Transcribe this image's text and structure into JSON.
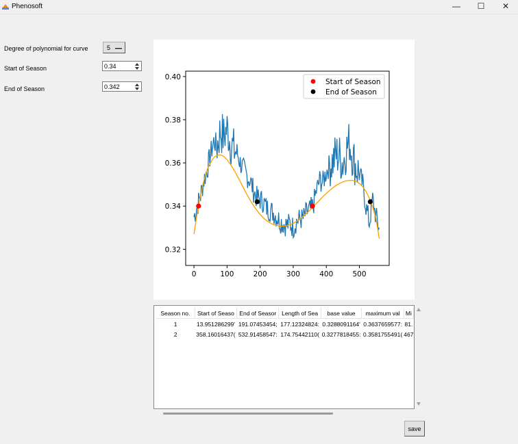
{
  "window": {
    "title": "Phenosoft",
    "minimize_glyph": "—",
    "maximize_glyph": "☐",
    "close_glyph": "✕",
    "icon": "app-icon"
  },
  "controls": {
    "degree_label": "Degree of polynomial for curve",
    "degree_value": "5",
    "start_label": "Start of Season",
    "start_value": "0.34",
    "end_label": "End of Season",
    "end_value": "0.342"
  },
  "chart_data": {
    "type": "line",
    "xlim": [
      -25,
      590
    ],
    "ylim": [
      0.3125,
      0.4025
    ],
    "x_ticks": [
      0,
      100,
      200,
      300,
      400,
      500
    ],
    "y_ticks": [
      0.32,
      0.34,
      0.36,
      0.38,
      0.4
    ],
    "x_tick_labels": [
      "0",
      "100",
      "200",
      "300",
      "400",
      "500"
    ],
    "y_tick_labels": [
      "0.32",
      "0.34",
      "0.36",
      "0.38",
      "0.40"
    ],
    "grid": false,
    "legend": {
      "position": "top-right",
      "entries": [
        {
          "label": "Start of Season",
          "color": "#ff0000"
        },
        {
          "label": "End of Season",
          "color": "#000000"
        }
      ]
    },
    "series": [
      {
        "kind": "raw",
        "color": "#1f77b4",
        "x": [
          0,
          10,
          20,
          30,
          40,
          50,
          60,
          70,
          80,
          90,
          100,
          110,
          120,
          130,
          140,
          150,
          160,
          170,
          180,
          190,
          200,
          210,
          220,
          230,
          240,
          250,
          260,
          270,
          280,
          290,
          300,
          310,
          320,
          330,
          340,
          350,
          360,
          370,
          380,
          390,
          400,
          410,
          420,
          430,
          440,
          450,
          460,
          470,
          480,
          490,
          500,
          510,
          520,
          530,
          540,
          550,
          560
        ],
        "y": [
          0.335,
          0.34,
          0.345,
          0.352,
          0.357,
          0.364,
          0.37,
          0.368,
          0.375,
          0.372,
          0.376,
          0.37,
          0.366,
          0.365,
          0.36,
          0.357,
          0.354,
          0.352,
          0.347,
          0.344,
          0.343,
          0.342,
          0.339,
          0.338,
          0.337,
          0.335,
          0.333,
          0.332,
          0.331,
          0.332,
          0.33,
          0.333,
          0.334,
          0.334,
          0.337,
          0.338,
          0.34,
          0.347,
          0.352,
          0.351,
          0.356,
          0.359,
          0.361,
          0.364,
          0.363,
          0.36,
          0.366,
          0.37,
          0.363,
          0.358,
          0.355,
          0.35,
          0.34,
          0.332,
          0.343,
          0.335,
          0.33
        ]
      },
      {
        "kind": "fit",
        "color": "#ffa500",
        "x": [
          0,
          10,
          20,
          30,
          40,
          50,
          60,
          70,
          80,
          90,
          100,
          110,
          120,
          130,
          140,
          150,
          160,
          170,
          180,
          190,
          200,
          210,
          220,
          230,
          240,
          250,
          260,
          270,
          280,
          290,
          300,
          310,
          320,
          330,
          340,
          350,
          360,
          370,
          380,
          390,
          400,
          410,
          420,
          430,
          440,
          450,
          460,
          470,
          480,
          490,
          500,
          510,
          520,
          530,
          540,
          550,
          560
        ],
        "y": [
          0.327,
          0.337,
          0.345,
          0.352,
          0.357,
          0.36,
          0.3625,
          0.3636,
          0.3637,
          0.363,
          0.3615,
          0.3594,
          0.357,
          0.3542,
          0.3513,
          0.3483,
          0.3454,
          0.3427,
          0.3402,
          0.338,
          0.3361,
          0.3345,
          0.3332,
          0.3322,
          0.3314,
          0.331,
          0.3307,
          0.3307,
          0.3309,
          0.3314,
          0.332,
          0.3329,
          0.334,
          0.3352,
          0.3366,
          0.338,
          0.3396,
          0.3412,
          0.3428,
          0.3444,
          0.3459,
          0.3472,
          0.3485,
          0.3496,
          0.3505,
          0.3512,
          0.3517,
          0.3519,
          0.3519,
          0.3514,
          0.3505,
          0.349,
          0.3468,
          0.3437,
          0.3396,
          0.3343,
          0.325
        ]
      }
    ],
    "markers": [
      {
        "x": 13.95,
        "y": 0.34,
        "type": "start",
        "color": "#ff0000"
      },
      {
        "x": 191.07,
        "y": 0.342,
        "type": "end",
        "color": "#000000"
      },
      {
        "x": 358.16,
        "y": 0.34,
        "type": "start",
        "color": "#ff0000"
      },
      {
        "x": 532.91,
        "y": 0.342,
        "type": "end",
        "color": "#000000"
      }
    ]
  },
  "table": {
    "headers": [
      "Season no.",
      "Start of Seaso",
      "End of Seasor",
      "Length of Sea",
      "base value",
      "maximum val",
      "Mi"
    ],
    "rows": [
      [
        "1",
        "13.951286299'",
        "191.07453454;",
        "177.12324824:",
        "0.3288091164'",
        "0.3637659577:",
        "81."
      ],
      [
        "2",
        "358.16016437(",
        "532.91458547:",
        "174.75442110(",
        "0.3277818455:",
        "0.3581755491(",
        "467"
      ]
    ]
  },
  "save_label": "save"
}
